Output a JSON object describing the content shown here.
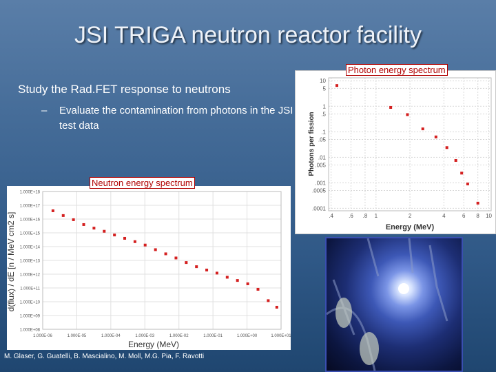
{
  "slide": {
    "title": "JSI TRIGA neutron reactor facility",
    "bullet": "Study the Rad.FET response to neutrons",
    "sub_bullet_marker": "–",
    "sub_bullet": "Evaluate the contamination from photons in the JSI test data",
    "authors": "M. Glaser, G. Guatelli, B. Mascialino, M. Moll, M.G. Pia, F. Ravotti",
    "marker_color": "#d42020"
  },
  "chart_data": [
    {
      "type": "scatter",
      "title": "Photon energy spectrum",
      "xlabel": "Energy (MeV)",
      "ylabel": "Photons per fission",
      "x_scale": "log",
      "y_scale": "log",
      "xlim": [
        0.38,
        10.5
      ],
      "x_ticks": [
        ".4",
        ".6",
        ".8",
        "1",
        "2",
        "4",
        "6",
        "8",
        "10"
      ],
      "y_ticks": [
        "10",
        "5",
        "1",
        ".5",
        ".1",
        ".05",
        ".01",
        ".005",
        ".001",
        ".0005",
        ".0001"
      ],
      "series": [
        {
          "x": [
            0.45,
            1.35,
            1.9,
            2.6,
            3.4,
            4.25,
            5.1,
            5.75,
            6.5,
            8.0
          ],
          "y": [
            6.5,
            0.9,
            0.47,
            0.13,
            0.063,
            0.024,
            0.0075,
            0.0024,
            0.0009,
            0.00016
          ]
        }
      ]
    },
    {
      "type": "scatter",
      "title": "Neutron energy spectrum",
      "xlabel": "Energy (MeV)",
      "ylabel": "d(flux) / dE [n / MeV cm2 s]",
      "x_scale": "log",
      "y_scale": "log",
      "xlim": [
        1e-06,
        10
      ],
      "ylim": [
        100000000.0,
        1e+18
      ],
      "x_ticks": [
        "1.000E-06",
        "1.000E-05",
        "1.000E-04",
        "1.000E-03",
        "1.000E-02",
        "1.000E-01",
        "1.000E+00",
        "1.000E+01"
      ],
      "y_ticks": [
        "1.000E+18",
        "1.000E+17",
        "1.000E+16",
        "1.000E+15",
        "1.000E+14",
        "1.000E+13",
        "1.000E+12",
        "1.000E+11",
        "1.000E+10",
        "1.000E+09",
        "1.000E+08"
      ],
      "series": [
        {
          "x": [
            2e-06,
            4e-06,
            8e-06,
            1.6e-05,
            3.2e-05,
            6.4e-05,
            0.000128,
            0.000256,
            0.000512,
            0.00102,
            0.00205,
            0.0041,
            0.0082,
            0.0164,
            0.0328,
            0.0655,
            0.131,
            0.262,
            0.524,
            1.05,
            2.1,
            4.2,
            7.5
          ],
          "y": [
            4e+16,
            1.8e+16,
            9000000000000000.0,
            4000000000000000.0,
            2200000000000000.0,
            1300000000000000.0,
            700000000000000.0,
            400000000000000.0,
            230000000000000.0,
            130000000000000.0,
            60000000000000.0,
            30000000000000.0,
            15000000000000.0,
            7000000000000.0,
            3500000000000.0,
            2000000000000.0,
            1200000000000.0,
            600000000000.0,
            350000000000.0,
            200000000000.0,
            80000000000.0,
            12000000000.0,
            4000000000.0
          ]
        }
      ]
    }
  ]
}
